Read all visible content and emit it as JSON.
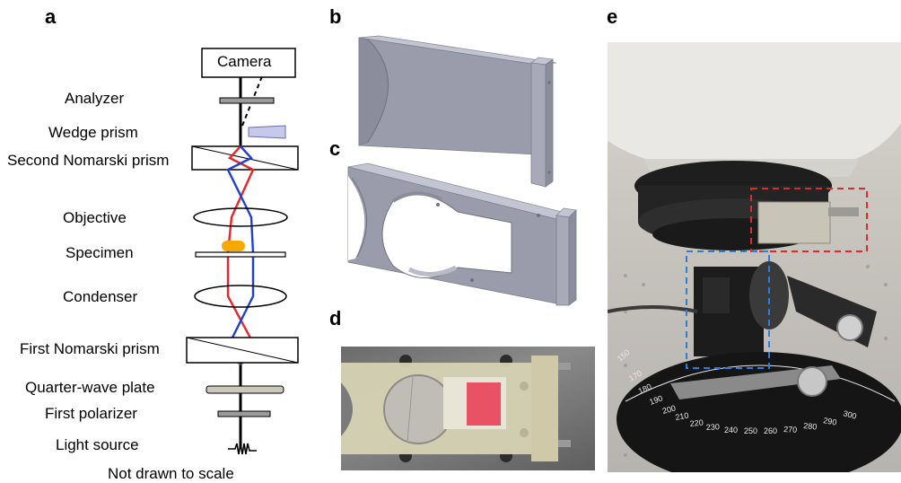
{
  "panel_letters": {
    "a": "a",
    "b": "b",
    "c": "c",
    "d": "d",
    "e": "e"
  },
  "schematic": {
    "camera": "Camera",
    "analyzer": "Analyzer",
    "wedge_prism": "Wedge prism",
    "second_nomarski_prism": "Second Nomarski prism",
    "objective": "Objective",
    "specimen": "Specimen",
    "condenser": "Condenser",
    "first_nomarski_prism": "First Nomarski prism",
    "quarter_wave_plate": "Quarter-wave plate",
    "first_polarizer": "First polarizer",
    "light_source": "Light source",
    "footnote": "Not drawn to scale"
  },
  "colors": {
    "beam_red": "#e8262a",
    "beam_blue": "#1f3fd6",
    "specimen": "#f5a800",
    "wedge": "#c6c8ee",
    "part_face": "#9a9cab",
    "part_top": "#b9bbc8",
    "part_dark": "#7d7f8e",
    "highlight_red": "#e8262a",
    "highlight_blue": "#2b7fd8"
  },
  "photo_e": {
    "protractor_ticks": [
      "150",
      "170",
      "180",
      "190",
      "200",
      "210",
      "220",
      "230",
      "240",
      "250",
      "260",
      "270",
      "280",
      "290",
      "300"
    ]
  }
}
